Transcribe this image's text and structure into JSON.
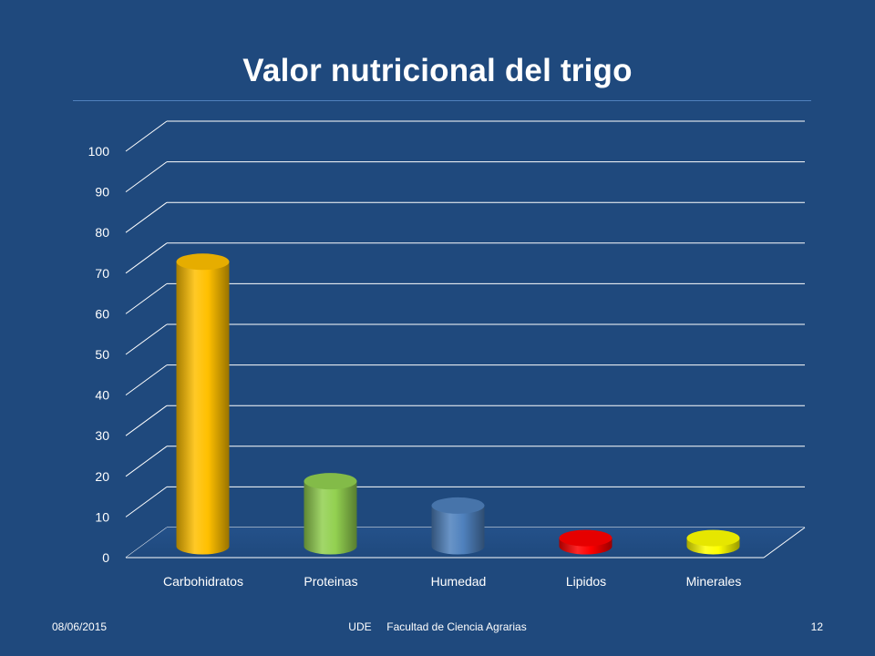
{
  "slide": {
    "title": "Valor nutricional del trigo"
  },
  "footer": {
    "date": "08/06/2015",
    "center": "UDE     Facultad de Ciencia Agrarias",
    "page": "12"
  },
  "chart_data": {
    "type": "bar",
    "style": "3d-cylinder",
    "categories": [
      "Carbohidratos",
      "Proteinas",
      "Humedad",
      "Lipidos",
      "Minerales"
    ],
    "values": [
      70,
      16,
      10,
      2,
      2
    ],
    "colors": [
      "#ffc000",
      "#92d050",
      "#4f81bd",
      "#ff0000",
      "#ffff00"
    ],
    "ylim": [
      0,
      100
    ],
    "yticks": [
      0,
      10,
      20,
      30,
      40,
      50,
      60,
      70,
      80,
      90,
      100
    ],
    "grid": true,
    "legend": "none",
    "title": "",
    "xlabel": "",
    "ylabel": ""
  }
}
